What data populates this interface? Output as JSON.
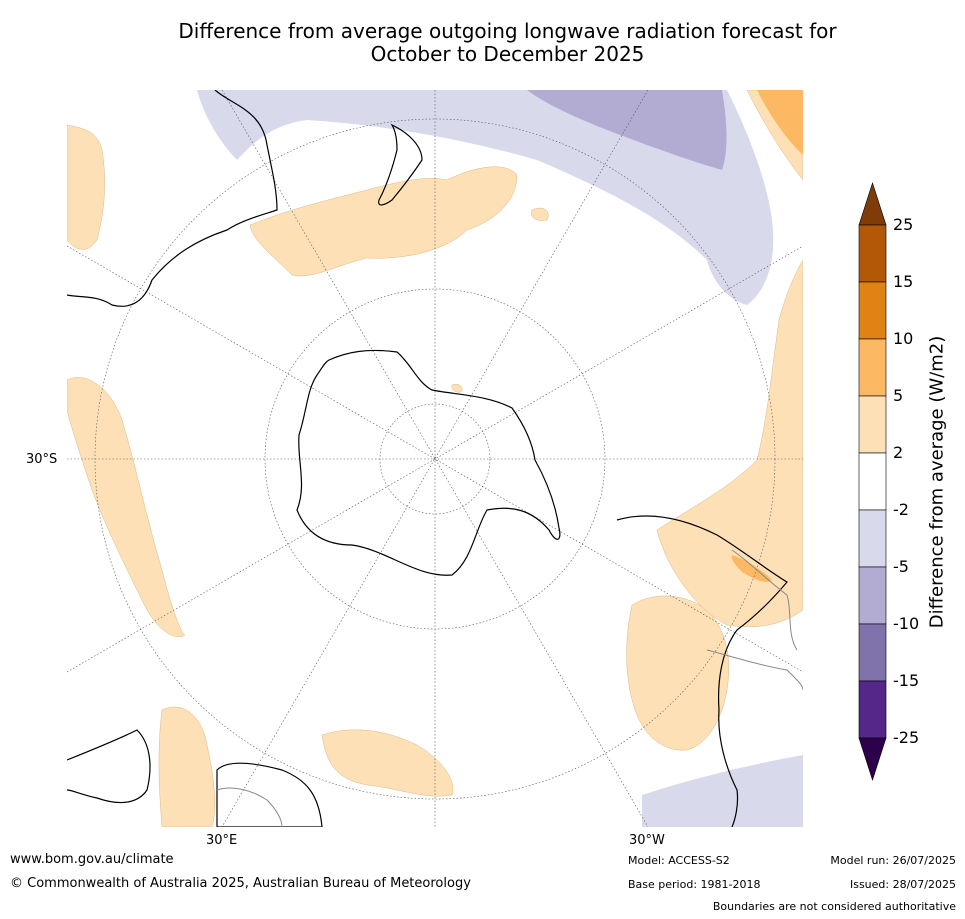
{
  "title": {
    "line1": "Difference from average outgoing longwave radiation forecast for",
    "line2": "October to December 2025"
  },
  "map": {
    "projection": "south-polar-stereographic",
    "lat_label": "30°S",
    "lon_labels": [
      "30°E",
      "30°W"
    ],
    "features": [
      "Antarctica",
      "Australia",
      "New Zealand",
      "South America",
      "Africa",
      "Madagascar"
    ]
  },
  "colorbar": {
    "label": "Difference from average (W/m2)",
    "ticks": [
      "25",
      "15",
      "10",
      "5",
      "2",
      "-2",
      "-5",
      "-10",
      "-15",
      "-25"
    ],
    "bins": [
      {
        "range": ">25",
        "color": "#7f3b08"
      },
      {
        "range": "15 to 25",
        "color": "#b35806"
      },
      {
        "range": "10 to 15",
        "color": "#e08214"
      },
      {
        "range": "5 to 10",
        "color": "#fdb863"
      },
      {
        "range": "2 to 5",
        "color": "#fee0b6"
      },
      {
        "range": "-2 to 2",
        "color": "#ffffff"
      },
      {
        "range": "-5 to -2",
        "color": "#d8daeb"
      },
      {
        "range": "-10 to -5",
        "color": "#b2abd2"
      },
      {
        "range": "-15 to -10",
        "color": "#8073ac"
      },
      {
        "range": "-25 to -15",
        "color": "#542788"
      },
      {
        "range": "<-25",
        "color": "#2d004b"
      }
    ]
  },
  "footer": {
    "website": "www.bom.gov.au/climate",
    "copyright": "© Commonwealth of Australia 2025, Australian Bureau of Meteorology",
    "model": "Model: ACCESS-S2",
    "base_period": "Base period: 1981-2018",
    "model_run": "Model run: 26/07/2025",
    "issued": "Issued: 28/07/2025",
    "disclaimer": "Boundaries are not considered authoritative"
  }
}
